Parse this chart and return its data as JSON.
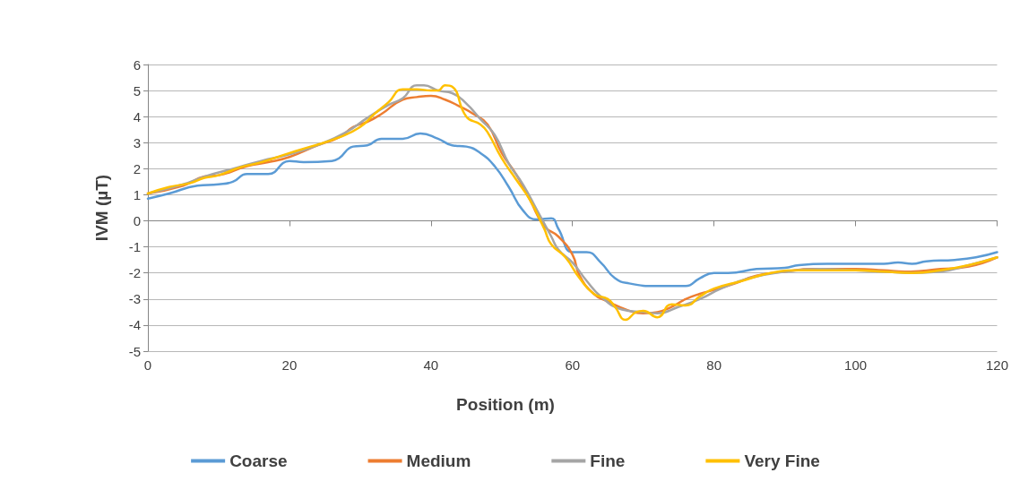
{
  "chart_data": {
    "type": "line",
    "xlabel": "Position (m)",
    "ylabel": "IVM (µT)",
    "xlim": [
      0,
      120
    ],
    "xticks": [
      0,
      20,
      40,
      60,
      80,
      100,
      120
    ],
    "ylim": [
      -5,
      6
    ],
    "yticks": [
      -5,
      -4,
      -3,
      -2,
      -1,
      0,
      1,
      2,
      3,
      4,
      5,
      6
    ],
    "grid": "y",
    "legend": "bottom",
    "marker": "none",
    "line_style": "solid",
    "series": [
      {
        "name": "Coarse",
        "color": "#5b9bd5",
        "x": [
          0,
          3,
          7,
          10,
          12,
          14,
          17,
          20,
          22,
          26,
          27,
          29,
          31,
          33,
          36,
          38.5,
          41,
          43,
          45,
          47,
          49,
          51,
          53,
          55,
          57,
          58,
          60,
          62,
          64,
          66,
          68,
          72,
          76,
          78,
          80,
          82,
          86,
          90,
          92,
          96,
          100,
          104,
          106,
          108,
          110,
          114,
          117,
          120
        ],
        "values": [
          0.85,
          1.05,
          1.35,
          1.4,
          1.5,
          1.8,
          1.8,
          2.3,
          2.25,
          2.3,
          2.4,
          2.85,
          2.9,
          3.15,
          3.15,
          3.35,
          3.15,
          2.9,
          2.85,
          2.6,
          2.1,
          1.3,
          0.4,
          0.05,
          0.1,
          -0.3,
          -1.2,
          -1.2,
          -1.6,
          -2.2,
          -2.4,
          -2.5,
          -2.5,
          -2.2,
          -2.0,
          -2.0,
          -1.85,
          -1.8,
          -1.7,
          -1.65,
          -1.65,
          -1.65,
          -1.6,
          -1.65,
          -1.55,
          -1.5,
          -1.4,
          -1.2
        ]
      },
      {
        "name": "Medium",
        "color": "#ed7d31",
        "x": [
          0,
          5,
          8,
          10,
          14,
          17,
          20,
          24,
          27,
          29,
          31,
          33,
          36,
          38,
          40,
          42,
          44,
          46,
          48,
          50,
          52,
          54,
          56,
          58,
          60,
          61,
          63,
          65,
          68,
          70,
          72,
          74,
          76,
          78,
          80,
          83,
          86,
          90,
          94,
          100,
          104,
          107,
          112,
          116,
          120
        ],
        "values": [
          1.05,
          1.35,
          1.7,
          1.75,
          2.1,
          2.25,
          2.45,
          2.9,
          3.2,
          3.6,
          3.8,
          4.1,
          4.65,
          4.75,
          4.8,
          4.65,
          4.4,
          4.1,
          3.7,
          2.6,
          1.8,
          0.8,
          -0.2,
          -0.6,
          -1.3,
          -2.1,
          -2.8,
          -3.1,
          -3.45,
          -3.55,
          -3.5,
          -3.3,
          -3.0,
          -2.8,
          -2.65,
          -2.4,
          -2.1,
          -1.95,
          -1.85,
          -1.85,
          -1.9,
          -1.95,
          -1.85,
          -1.75,
          -1.4
        ]
      },
      {
        "name": "Fine",
        "color": "#a5a5a5",
        "x": [
          0,
          5,
          8,
          12,
          16,
          20,
          24,
          28,
          31,
          34,
          36,
          38,
          39,
          41,
          43,
          45,
          47,
          49,
          51,
          53,
          55,
          57,
          58,
          60,
          62,
          64,
          67,
          70,
          72,
          75,
          78,
          81,
          85,
          90,
          95,
          100,
          104,
          108,
          112,
          116,
          120
        ],
        "values": [
          1.05,
          1.4,
          1.7,
          2.0,
          2.3,
          2.55,
          2.9,
          3.4,
          3.95,
          4.45,
          4.7,
          5.2,
          5.2,
          5.0,
          4.9,
          4.5,
          3.9,
          3.3,
          2.2,
          1.4,
          0.4,
          -0.6,
          -1.1,
          -1.6,
          -2.3,
          -2.9,
          -3.4,
          -3.5,
          -3.55,
          -3.3,
          -3.0,
          -2.6,
          -2.2,
          -1.95,
          -1.85,
          -1.9,
          -1.95,
          -2.0,
          -1.95,
          -1.7,
          -1.4
        ]
      },
      {
        "name": "Very Fine",
        "color": "#ffc000",
        "x": [
          0,
          3,
          6,
          8,
          10,
          13,
          16,
          20,
          23,
          27,
          30,
          32,
          34,
          36,
          38,
          40,
          41,
          42,
          43,
          45,
          47,
          48,
          50,
          52,
          54,
          56,
          57,
          59,
          61,
          63,
          65,
          66,
          67.5,
          69,
          70,
          72,
          74,
          76,
          78,
          80,
          84,
          88,
          92,
          100,
          104,
          108,
          112,
          116,
          120
        ],
        "values": [
          1.05,
          1.3,
          1.45,
          1.65,
          1.75,
          2.05,
          2.25,
          2.6,
          2.85,
          3.2,
          3.6,
          4.1,
          4.55,
          5.05,
          5.05,
          5.0,
          5.0,
          5.2,
          5.15,
          4.0,
          3.7,
          3.4,
          2.4,
          1.6,
          0.8,
          -0.3,
          -0.9,
          -1.4,
          -2.2,
          -2.8,
          -3.0,
          -3.3,
          -3.8,
          -3.5,
          -3.45,
          -3.7,
          -3.2,
          -3.25,
          -2.9,
          -2.6,
          -2.3,
          -2.0,
          -1.9,
          -1.9,
          -1.95,
          -2.0,
          -1.9,
          -1.7,
          -1.4
        ]
      }
    ]
  }
}
